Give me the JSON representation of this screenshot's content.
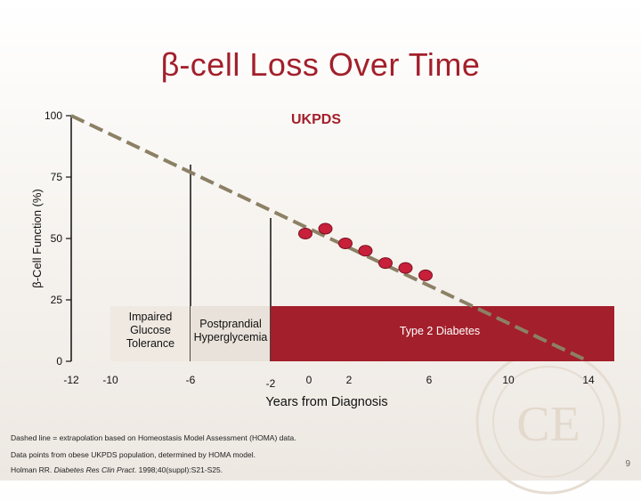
{
  "title": "-cell Loss Over Time",
  "title_symbol": "β",
  "chart_data": {
    "type": "scatter",
    "ylabel": "β-Cell Function (%)",
    "xlabel": "Years from Diagnosis",
    "annotation": "UKPDS",
    "ylim": [
      0,
      100
    ],
    "y_ticks": [
      "100",
      "75",
      "50",
      "25",
      "0"
    ],
    "x_ticks": [
      "-12",
      "-10",
      "-6",
      "-2",
      "0",
      "2",
      "6",
      "10",
      "14"
    ],
    "points": [
      {
        "x": 0,
        "y": 52
      },
      {
        "x": 1,
        "y": 54
      },
      {
        "x": 2,
        "y": 48
      },
      {
        "x": 3,
        "y": 45
      },
      {
        "x": 4,
        "y": 40
      },
      {
        "x": 5,
        "y": 38
      },
      {
        "x": 6,
        "y": 35
      }
    ],
    "extrapolation_line": {
      "style": "dashed",
      "from": {
        "x": -12,
        "y": 100
      },
      "to": {
        "x": 14,
        "y": 0
      }
    },
    "stages": [
      {
        "label": "Impaired\nGlucose\nTolerance",
        "from": -10,
        "to": -6
      },
      {
        "label": "Postprandial\nHyperglycemia",
        "from": -6,
        "to": -2
      },
      {
        "label": "Type 2 Diabetes",
        "from": -2,
        "to": 14
      }
    ]
  },
  "footnotes": {
    "line1": "Dashed line = extrapolation based on Homeostasis Model Assessment (HOMA) data.",
    "line2": "Data points from obese UKPDS population, determined by HOMA model.",
    "ref_author": "Holman RR. ",
    "ref_journal": "Diabetes Res Clin Pract",
    "ref_rest": ". 1998;40(suppl):S21-S25."
  },
  "page_number": "9",
  "colors": {
    "accent": "#a31f2b",
    "dashed": "#8c8065",
    "point": "#c8203a"
  }
}
